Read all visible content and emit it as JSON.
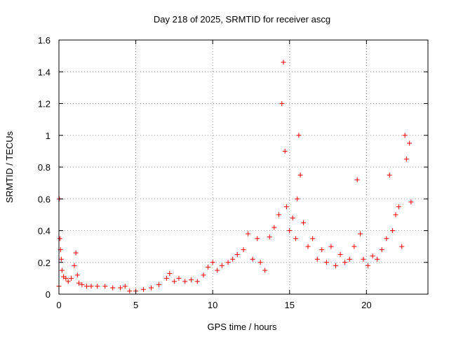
{
  "chart_data": {
    "type": "scatter",
    "title": "Day 218 of 2025, SRMTID for receiver ascg",
    "xlabel": "GPS time / hours",
    "ylabel": "SRMTID / TECUs",
    "xlim": [
      0,
      24
    ],
    "ylim": [
      0,
      1.6
    ],
    "xticks": [
      0,
      5,
      10,
      15,
      20
    ],
    "xtick_labels": [
      "0",
      "5",
      "10",
      "15",
      "20"
    ],
    "yticks": [
      0,
      0.2,
      0.4,
      0.6,
      0.8,
      1.0,
      1.2,
      1.4,
      1.6
    ],
    "ytick_labels": [
      "0",
      "0.2",
      "0.4",
      "0.6",
      "0.8",
      "1",
      "1.2",
      "1.4",
      "1.6"
    ],
    "grid": true,
    "marker": "+",
    "colors": {
      "series": "#ff0000",
      "grid": "#a0a0a0",
      "axis": "#000000"
    },
    "series": [
      {
        "name": "SRMTID",
        "x": [
          0.0,
          0.03,
          0.06,
          0.1,
          0.15,
          0.2,
          0.3,
          0.45,
          0.6,
          0.8,
          1.0,
          1.1,
          1.2,
          1.3,
          1.5,
          1.8,
          2.1,
          2.5,
          3.0,
          3.5,
          4.0,
          4.3,
          4.6,
          5.0,
          5.5,
          6.0,
          6.5,
          7.0,
          7.2,
          7.5,
          7.8,
          8.2,
          8.6,
          9.0,
          9.4,
          9.7,
          10.0,
          10.3,
          10.6,
          11.0,
          11.3,
          11.6,
          12.0,
          12.3,
          12.6,
          12.9,
          13.1,
          13.4,
          13.7,
          14.0,
          14.3,
          14.5,
          14.6,
          14.7,
          14.8,
          15.0,
          15.2,
          15.4,
          15.5,
          15.6,
          15.7,
          15.9,
          16.2,
          16.5,
          16.8,
          17.1,
          17.4,
          17.7,
          18.0,
          18.3,
          18.6,
          18.9,
          19.2,
          19.4,
          19.6,
          19.8,
          20.1,
          20.4,
          20.7,
          21.0,
          21.3,
          21.5,
          21.7,
          21.9,
          22.1,
          22.3,
          22.5,
          22.6,
          22.8,
          22.9
        ],
        "values": [
          0.05,
          0.6,
          0.35,
          0.28,
          0.22,
          0.15,
          0.11,
          0.1,
          0.08,
          0.1,
          0.18,
          0.26,
          0.12,
          0.07,
          0.06,
          0.05,
          0.05,
          0.05,
          0.05,
          0.04,
          0.04,
          0.05,
          0.02,
          0.02,
          0.03,
          0.04,
          0.06,
          0.1,
          0.13,
          0.08,
          0.1,
          0.08,
          0.09,
          0.08,
          0.12,
          0.17,
          0.2,
          0.15,
          0.18,
          0.2,
          0.22,
          0.25,
          0.28,
          0.38,
          0.22,
          0.35,
          0.2,
          0.15,
          0.36,
          0.42,
          0.5,
          1.2,
          1.46,
          0.9,
          0.55,
          0.4,
          0.48,
          0.35,
          0.6,
          1.0,
          0.75,
          0.45,
          0.3,
          0.35,
          0.22,
          0.28,
          0.2,
          0.3,
          0.18,
          0.25,
          0.2,
          0.22,
          0.3,
          0.72,
          0.38,
          0.22,
          0.18,
          0.24,
          0.22,
          0.28,
          0.35,
          0.75,
          0.4,
          0.5,
          0.55,
          0.3,
          1.0,
          0.85,
          0.95,
          0.58
        ]
      }
    ]
  }
}
